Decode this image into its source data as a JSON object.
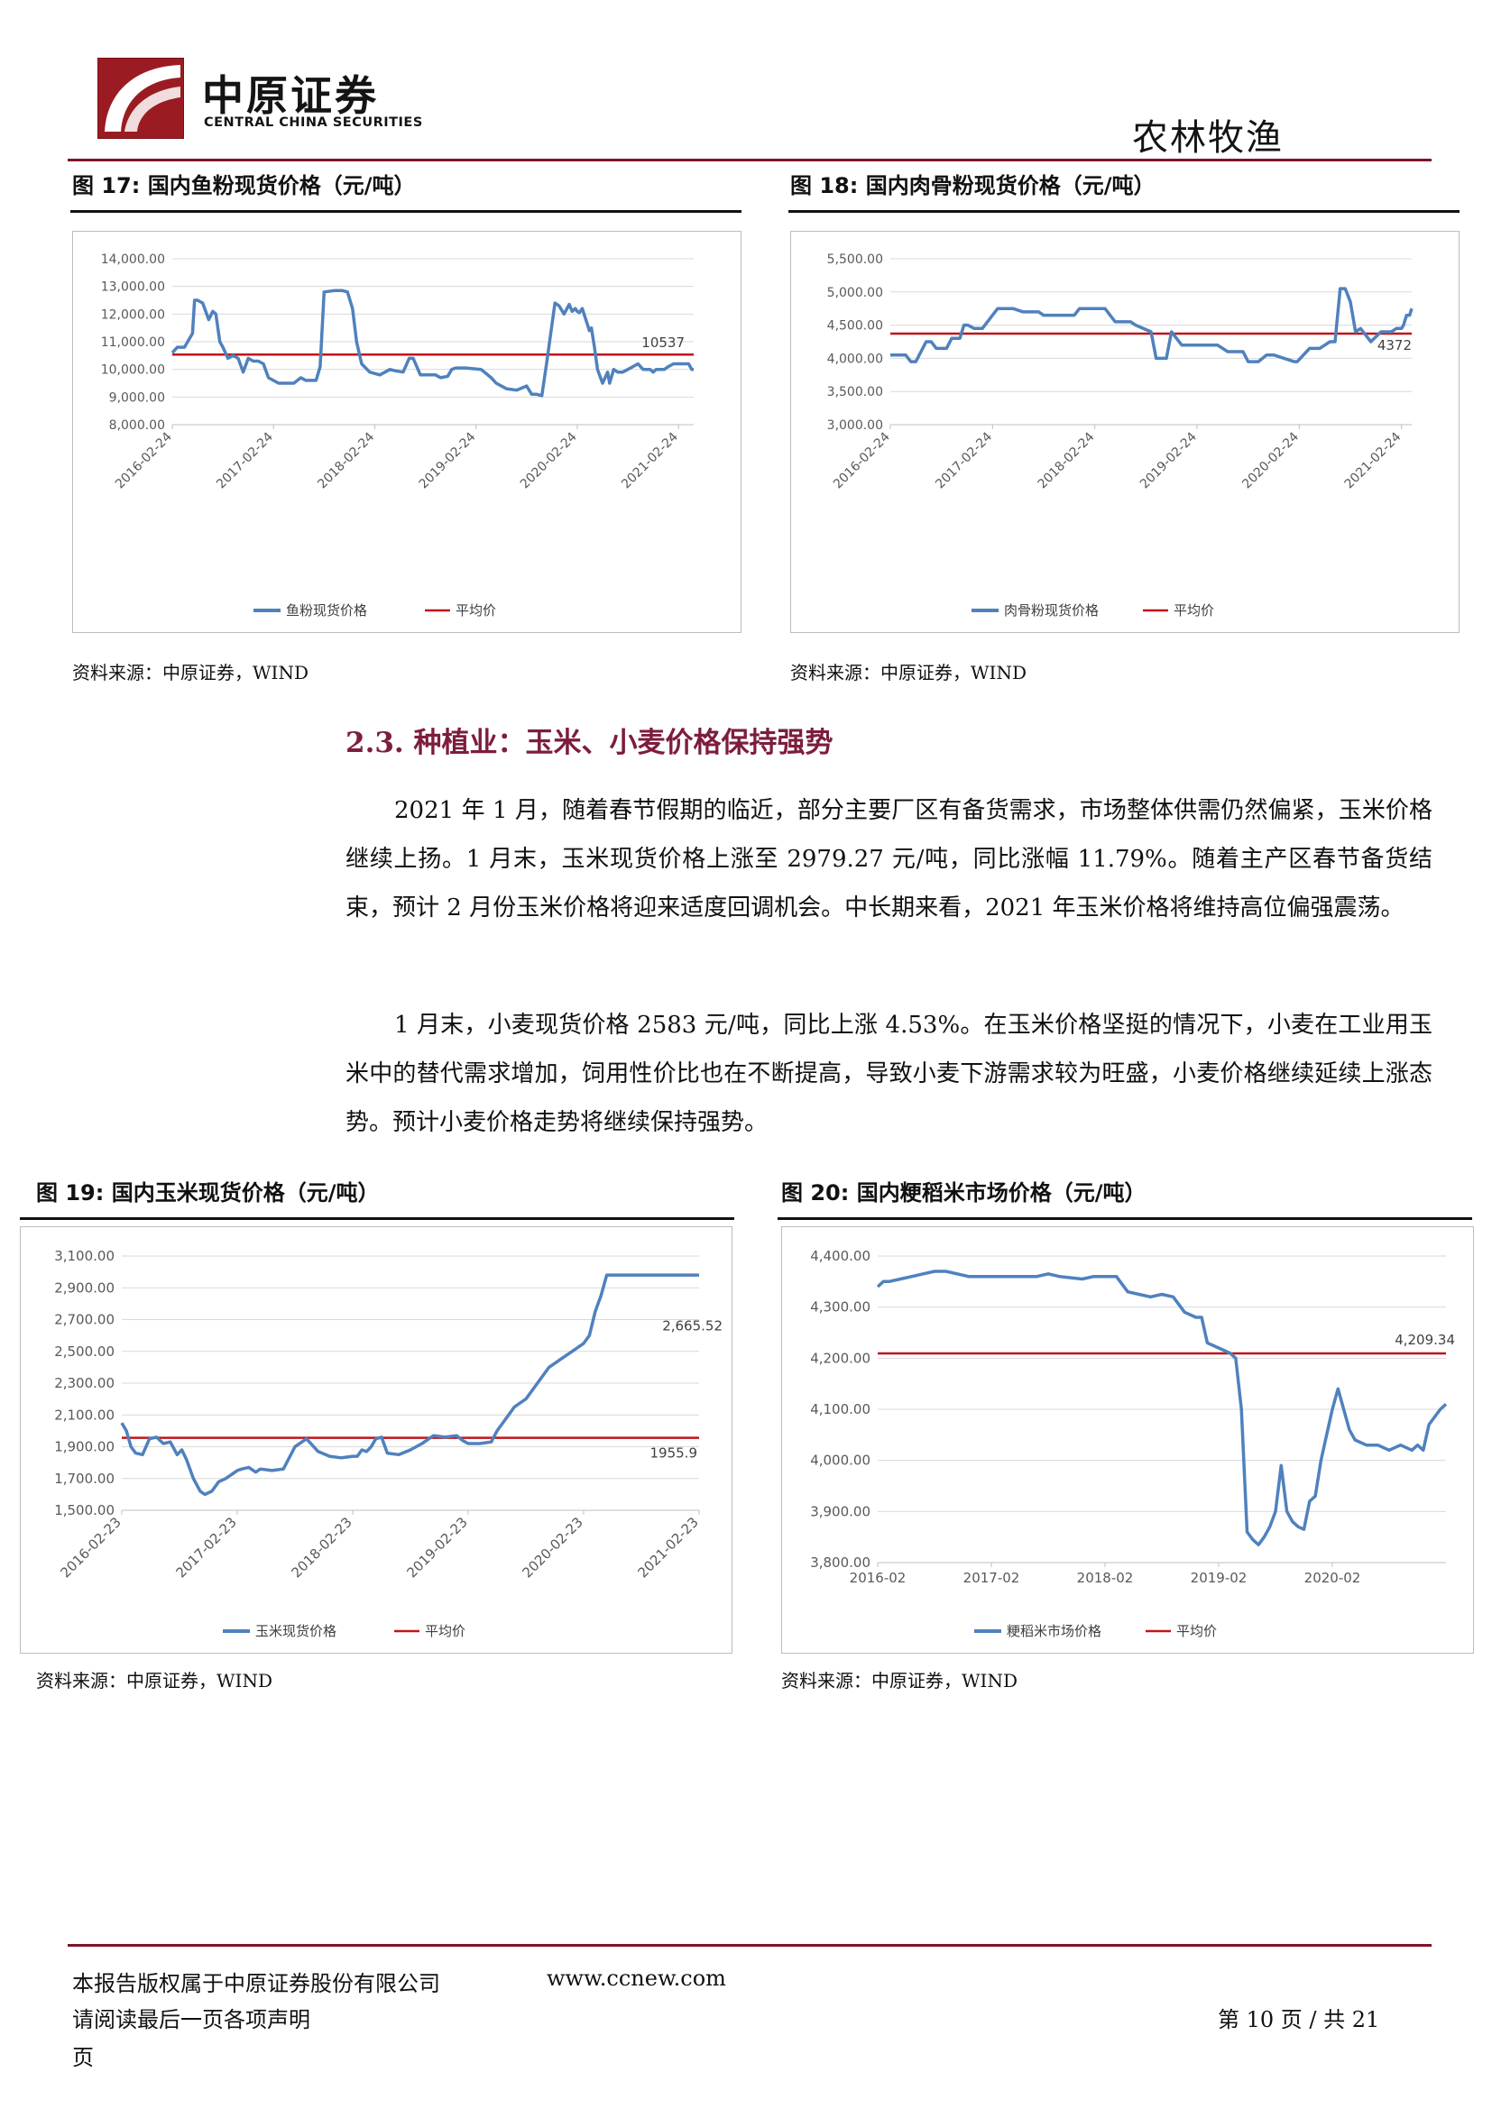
{
  "header": {
    "logo_cn": "中原证券",
    "logo_en": "CENTRAL CHINA SECURITIES",
    "section_tag": "农林牧渔"
  },
  "figures": {
    "fig17": {
      "title": "图 17:  国内鱼粉现货价格（元/吨）",
      "source": "资料来源：中原证券，WIND"
    },
    "fig18": {
      "title": "图 18:  国内肉骨粉现货价格（元/吨）",
      "source": "资料来源：中原证券，WIND"
    },
    "fig19": {
      "title": "图 19:  国内玉米现货价格（元/吨）",
      "source": "资料来源：中原证券，WIND"
    },
    "fig20": {
      "title": "图 20:  国内粳稻米市场价格（元/吨）",
      "source": "资料来源：中原证券，WIND"
    }
  },
  "section": {
    "title": "2.3. 种植业：玉米、小麦价格保持强势",
    "paragraphs": [
      "2021 年 1 月，随着春节假期的临近，部分主要厂区有备货需求，市场整体供需仍然偏紧，玉米价格继续上扬。1 月末，玉米现货价格上涨至 2979.27 元/吨，同比涨幅 11.79%。随着主产区春节备货结束，预计 2 月份玉米价格将迎来适度回调机会。中长期来看，2021 年玉米价格将维持高位偏强震荡。",
      "1 月末，小麦现货价格 2583 元/吨，同比上涨 4.53%。在玉米价格坚挺的情况下，小麦在工业用玉米中的替代需求增加，饲用性价比也在不断提高，导致小麦下游需求较为旺盛，小麦价格继续延续上涨态势。预计小麦价格走势将继续保持强势。"
    ]
  },
  "footer": {
    "copyright": "本报告版权属于中原证券股份有限公司",
    "website": "www.ccnew.com",
    "disclaimer": "请阅读最后一页各项声明",
    "page_label": "页",
    "page_number": "第 10 页 / 共 21"
  },
  "colors": {
    "series": "#4f81bd",
    "average": "#c0141c",
    "brand": "#7d1428"
  },
  "chart_data": [
    {
      "id": "fig17",
      "type": "line",
      "title": "",
      "ylim": [
        8000,
        14000
      ],
      "yticks": [
        "14,000.00",
        "13,000.00",
        "12,000.00",
        "11,000.00",
        "10,000.00",
        "9,000.00",
        "8,000.00"
      ],
      "ytick_values": [
        14000,
        13000,
        12000,
        11000,
        10000,
        9000,
        8000
      ],
      "xlim": [
        2016.0,
        2021.15
      ],
      "xticks": [
        "2016-02-24",
        "2017-02-24",
        "2018-02-24",
        "2019-02-24",
        "2020-02-24",
        "2021-02-24"
      ],
      "xtick_values": [
        2016.0,
        2017.0,
        2018.0,
        2019.0,
        2020.0,
        2021.0
      ],
      "legend_position": "bottom",
      "grid": "horizontal",
      "series": [
        {
          "name": "鱼粉现货价格",
          "x": [
            2016.0,
            2016.05,
            2016.12,
            2016.2,
            2016.22,
            2016.25,
            2016.3,
            2016.36,
            2016.4,
            2016.43,
            2016.47,
            2016.5,
            2016.55,
            2016.6,
            2016.65,
            2016.7,
            2016.75,
            2016.8,
            2016.85,
            2016.9,
            2016.95,
            2017.05,
            2017.15,
            2017.2,
            2017.27,
            2017.32,
            2017.36,
            2017.42,
            2017.46,
            2017.5,
            2017.6,
            2017.68,
            2017.73,
            2017.78,
            2017.82,
            2017.87,
            2017.95,
            2018.05,
            2018.15,
            2018.2,
            2018.28,
            2018.34,
            2018.38,
            2018.45,
            2018.52,
            2018.6,
            2018.65,
            2018.72,
            2018.76,
            2018.8,
            2018.9,
            2019.05,
            2019.15,
            2019.2,
            2019.3,
            2019.4,
            2019.5,
            2019.55,
            2019.6,
            2019.65,
            2019.7,
            2019.78,
            2019.82,
            2019.87,
            2019.92,
            2019.95,
            2019.98,
            2020.0,
            2020.02,
            2020.05,
            2020.12,
            2020.14,
            2020.17,
            2020.2,
            2020.23,
            2020.25,
            2020.3,
            2020.32,
            2020.36,
            2020.4,
            2020.45,
            2020.5,
            2020.55,
            2020.6,
            2020.65,
            2020.68,
            2020.72,
            2020.75,
            2020.78,
            2020.82,
            2020.86,
            2020.9,
            2020.95,
            2021.0,
            2021.05,
            2021.1,
            2021.13,
            2021.15
          ],
          "y": [
            10600,
            10800,
            10800,
            11300,
            12500,
            12500,
            12400,
            11800,
            12100,
            12000,
            11000,
            10800,
            10400,
            10500,
            10400,
            9900,
            10400,
            10300,
            10300,
            10200,
            9700,
            9500,
            9500,
            9500,
            9700,
            9600,
            9600,
            9600,
            10100,
            12800,
            12850,
            12850,
            12800,
            12200,
            11000,
            10200,
            9900,
            9800,
            10000,
            9950,
            9900,
            10400,
            10400,
            9800,
            9800,
            9800,
            9700,
            9750,
            10000,
            10050,
            10050,
            10000,
            9700,
            9500,
            9300,
            9250,
            9400,
            9100,
            9100,
            9050,
            10300,
            12400,
            12300,
            12000,
            12350,
            12100,
            12200,
            12100,
            12050,
            12200,
            11400,
            11500,
            10800,
            10000,
            9700,
            9500,
            9900,
            9500,
            10000,
            9900,
            9900,
            10000,
            10100,
            10200,
            10000,
            10000,
            10000,
            9900,
            10000,
            10000,
            10000,
            10100,
            10200,
            10200,
            10200,
            10200,
            10000,
            10000
          ]
        },
        {
          "name": "平均价",
          "constant": 10537,
          "label": "10537"
        }
      ]
    },
    {
      "id": "fig18",
      "type": "line",
      "title": "",
      "ylim": [
        3000,
        5500
      ],
      "yticks": [
        "5,500.00",
        "5,000.00",
        "4,500.00",
        "4,000.00",
        "3,500.00",
        "3,000.00"
      ],
      "ytick_values": [
        5500,
        5000,
        4500,
        4000,
        3500,
        3000
      ],
      "xlim": [
        2016.0,
        2021.1
      ],
      "xticks": [
        "2016-02-24",
        "2017-02-24",
        "2018-02-24",
        "2019-02-24",
        "2020-02-24",
        "2021-02-24"
      ],
      "xtick_values": [
        2016.0,
        2017.0,
        2018.0,
        2019.0,
        2020.0,
        2021.0
      ],
      "legend_position": "bottom",
      "grid": "horizontal",
      "series": [
        {
          "name": "肉骨粉现货价格",
          "x": [
            2016.0,
            2016.15,
            2016.2,
            2016.25,
            2016.3,
            2016.35,
            2016.4,
            2016.45,
            2016.55,
            2016.6,
            2016.68,
            2016.72,
            2016.76,
            2016.82,
            2016.9,
            2017.0,
            2017.05,
            2017.1,
            2017.2,
            2017.3,
            2017.45,
            2017.5,
            2017.55,
            2017.6,
            2017.8,
            2017.85,
            2018.1,
            2018.2,
            2018.35,
            2018.4,
            2018.55,
            2018.6,
            2018.65,
            2018.7,
            2018.75,
            2018.85,
            2018.9,
            2018.95,
            2019.05,
            2019.2,
            2019.3,
            2019.35,
            2019.45,
            2019.5,
            2019.6,
            2019.68,
            2019.75,
            2019.95,
            2019.98,
            2020.1,
            2020.18,
            2020.2,
            2020.25,
            2020.3,
            2020.35,
            2020.4,
            2020.45,
            2020.5,
            2020.55,
            2020.6,
            2020.7,
            2020.8,
            2020.9,
            2020.95,
            2021.0,
            2021.02,
            2021.05,
            2021.08,
            2021.1
          ],
          "y": [
            4050,
            4050,
            3950,
            3950,
            4100,
            4250,
            4250,
            4150,
            4150,
            4300,
            4300,
            4500,
            4500,
            4450,
            4450,
            4650,
            4750,
            4750,
            4750,
            4700,
            4700,
            4650,
            4650,
            4650,
            4650,
            4750,
            4750,
            4550,
            4550,
            4500,
            4400,
            4000,
            4000,
            4000,
            4400,
            4200,
            4200,
            4200,
            4200,
            4200,
            4100,
            4100,
            4100,
            3950,
            3950,
            4050,
            4050,
            3950,
            3950,
            4150,
            4150,
            4150,
            4200,
            4250,
            4250,
            5050,
            5050,
            4850,
            4400,
            4450,
            4250,
            4400,
            4400,
            4450,
            4450,
            4500,
            4650,
            4650,
            4750
          ]
        },
        {
          "name": "平均价",
          "constant": 4372,
          "label": "4372"
        }
      ]
    },
    {
      "id": "fig19",
      "type": "line",
      "title": "",
      "ylim": [
        1500,
        3100
      ],
      "yticks": [
        "3,100.00",
        "2,900.00",
        "2,700.00",
        "2,500.00",
        "2,300.00",
        "2,100.00",
        "1,900.00",
        "1,700.00",
        "1,500.00"
      ],
      "ytick_values": [
        3100,
        2900,
        2700,
        2500,
        2300,
        2100,
        1900,
        1700,
        1500
      ],
      "xlim": [
        2016.0,
        2021.0
      ],
      "xticks": [
        "2016-02-23",
        "2017-02-23",
        "2018-02-23",
        "2019-02-23",
        "2020-02-23",
        "2021-02-23"
      ],
      "xtick_values": [
        2016.0,
        2017.0,
        2018.0,
        2019.0,
        2020.0,
        2021.0
      ],
      "legend_position": "bottom",
      "grid": "horizontal",
      "series": [
        {
          "name": "玉米现货价格",
          "x": [
            2016.0,
            2016.04,
            2016.08,
            2016.12,
            2016.18,
            2016.24,
            2016.3,
            2016.36,
            2016.42,
            2016.48,
            2016.52,
            2016.56,
            2016.62,
            2016.68,
            2016.72,
            2016.78,
            2016.84,
            2016.9,
            2016.96,
            2017.0,
            2017.04,
            2017.1,
            2017.16,
            2017.2,
            2017.3,
            2017.4,
            2017.5,
            2017.6,
            2017.7,
            2017.8,
            2017.9,
            2018.0,
            2018.04,
            2018.08,
            2018.12,
            2018.16,
            2018.2,
            2018.25,
            2018.3,
            2018.4,
            2018.5,
            2018.6,
            2018.7,
            2018.8,
            2018.9,
            2018.95,
            2019.0,
            2019.1,
            2019.2,
            2019.25,
            2019.3,
            2019.35,
            2019.4,
            2019.5,
            2019.6,
            2019.7,
            2019.8,
            2019.9,
            2020.0,
            2020.05,
            2020.1,
            2020.15,
            2020.2,
            2020.25,
            2020.3,
            2020.35,
            2020.4,
            2020.45,
            2020.5,
            2020.55,
            2020.6,
            2020.65,
            2020.7,
            2020.75,
            2020.8,
            2020.85,
            2020.9,
            2020.95,
            2020.98,
            2021.0
          ],
          "y": [
            2050,
            2000,
            1900,
            1860,
            1850,
            1950,
            1960,
            1920,
            1930,
            1850,
            1880,
            1820,
            1700,
            1620,
            1600,
            1620,
            1680,
            1700,
            1730,
            1750,
            1760,
            1770,
            1740,
            1760,
            1750,
            1760,
            1900,
            1950,
            1870,
            1840,
            1830,
            1840,
            1840,
            1880,
            1870,
            1900,
            1950,
            1960,
            1860,
            1850,
            1880,
            1920,
            1970,
            1960,
            1970,
            1940,
            1920,
            1920,
            1930,
            2000,
            2050,
            2100,
            2150,
            2200,
            2300,
            2400,
            2450,
            2500,
            2550,
            2600,
            2750,
            2850,
            2980,
            2980,
            2980,
            2980,
            2980,
            2980,
            2980,
            2980,
            2980,
            2980,
            2980,
            2980,
            2980,
            2980,
            2980,
            2980,
            2980,
            2980
          ]
        },
        {
          "name": "平均价",
          "constant": 1955.9,
          "label": "1955.9"
        }
      ],
      "annotations": [
        "2,665.52"
      ]
    },
    {
      "id": "fig20",
      "type": "line",
      "title": "",
      "ylim": [
        3800,
        4400
      ],
      "yticks": [
        "4,400.00",
        "4,300.00",
        "4,200.00",
        "4,100.00",
        "4,000.00",
        "3,900.00",
        "3,800.00"
      ],
      "ytick_values": [
        4400,
        4300,
        4200,
        4100,
        4000,
        3900,
        3800
      ],
      "xlim": [
        2016.0,
        2021.0
      ],
      "xticks": [
        "2016-02",
        "2017-02",
        "2018-02",
        "2019-02",
        "2020-02"
      ],
      "xtick_values": [
        2016.0,
        2017.0,
        2018.0,
        2019.0,
        2020.0
      ],
      "legend_position": "bottom",
      "grid": "horizontal",
      "series": [
        {
          "name": "粳稻米市场价格",
          "x": [
            2016.0,
            2016.05,
            2016.1,
            2016.2,
            2016.3,
            2016.4,
            2016.5,
            2016.6,
            2016.7,
            2016.8,
            2016.9,
            2017.0,
            2017.2,
            2017.4,
            2017.5,
            2017.6,
            2017.8,
            2017.9,
            2018.0,
            2018.1,
            2018.2,
            2018.3,
            2018.4,
            2018.5,
            2018.6,
            2018.7,
            2018.8,
            2018.85,
            2018.9,
            2019.0,
            2019.1,
            2019.15,
            2019.2,
            2019.25,
            2019.3,
            2019.35,
            2019.4,
            2019.45,
            2019.5,
            2019.55,
            2019.6,
            2019.65,
            2019.7,
            2019.75,
            2019.8,
            2019.85,
            2019.9,
            2019.95,
            2020.0,
            2020.05,
            2020.1,
            2020.15,
            2020.2,
            2020.3,
            2020.4,
            2020.5,
            2020.6,
            2020.7,
            2020.75,
            2020.8,
            2020.85,
            2020.9,
            2020.95,
            2021.0
          ],
          "y": [
            4340,
            4350,
            4350,
            4355,
            4360,
            4365,
            4370,
            4370,
            4365,
            4360,
            4360,
            4360,
            4360,
            4360,
            4365,
            4360,
            4355,
            4360,
            4360,
            4360,
            4330,
            4325,
            4320,
            4325,
            4320,
            4290,
            4280,
            4280,
            4230,
            4220,
            4210,
            4200,
            4100,
            3860,
            3845,
            3835,
            3850,
            3870,
            3900,
            3990,
            3900,
            3880,
            3870,
            3865,
            3920,
            3930,
            4000,
            4050,
            4100,
            4140,
            4100,
            4060,
            4040,
            4030,
            4030,
            4020,
            4030,
            4020,
            4030,
            4020,
            4070,
            4085,
            4100,
            4110
          ]
        },
        {
          "name": "平均价",
          "constant": 4209.34,
          "label": "4,209.34"
        }
      ]
    }
  ]
}
